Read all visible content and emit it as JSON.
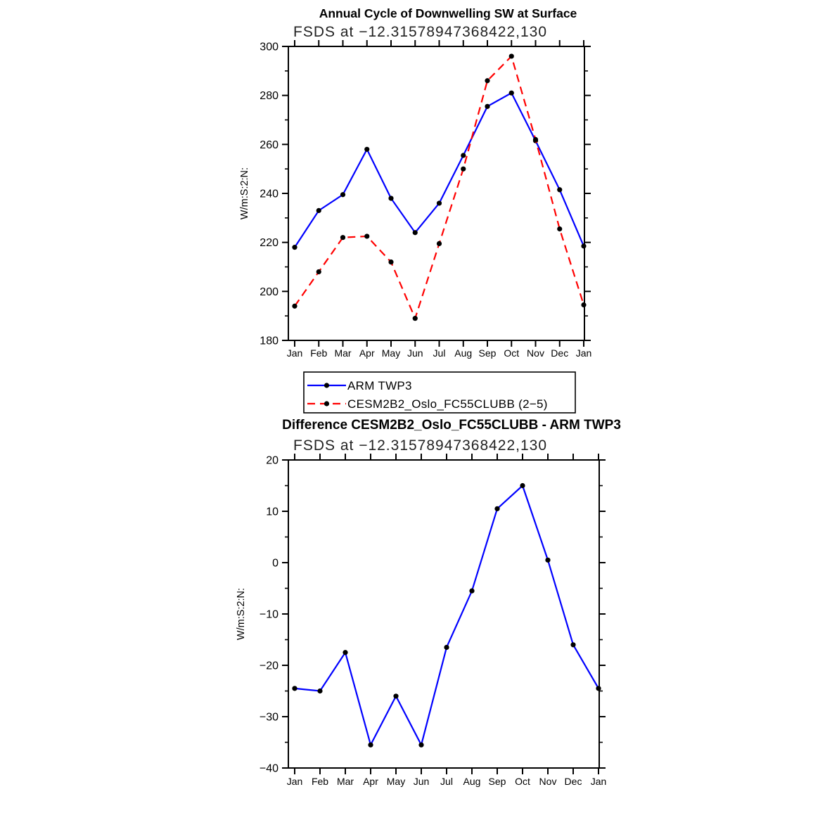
{
  "page": {
    "background": "#ffffff"
  },
  "colors": {
    "axis": "#000000",
    "marker": "#000000",
    "series_blue": "#0000ff",
    "series_red": "#ff0000"
  },
  "chart_data": [
    {
      "type": "line",
      "title": "Annual Cycle of Downwelling SW at Surface",
      "subtitle": "FSDS at −12.31578947368422,130",
      "ylabel": "W/m:S:2:N:",
      "categories": [
        "Jan",
        "Feb",
        "Mar",
        "Apr",
        "May",
        "Jun",
        "Jul",
        "Aug",
        "Sep",
        "Oct",
        "Nov",
        "Dec",
        "Jan"
      ],
      "ylim": [
        180,
        300
      ],
      "ytick_step": 20,
      "ytick_minor": 10,
      "grid": false,
      "legend_position": "below",
      "series": [
        {
          "name": "ARM TWP3",
          "color": "#0000ff",
          "style": "solid",
          "marker": "circle",
          "values": [
            218,
            233,
            239.5,
            258,
            238,
            224,
            236,
            255.5,
            275.5,
            281,
            261.5,
            241.5,
            218.5
          ]
        },
        {
          "name": "CESM2B2_Oslo_FC55CLUBB (2−5)",
          "color": "#ff0000",
          "style": "dashed",
          "marker": "circle",
          "values": [
            194,
            208,
            222,
            222.5,
            212,
            189,
            219.5,
            250,
            286,
            296,
            262,
            225.5,
            194.5
          ]
        }
      ]
    },
    {
      "type": "line",
      "title": "Difference CESM2B2_Oslo_FC55CLUBB - ARM TWP3",
      "subtitle": "FSDS at −12.31578947368422,130",
      "ylabel": "W/m:S:2:N:",
      "categories": [
        "Jan",
        "Feb",
        "Mar",
        "Apr",
        "May",
        "Jun",
        "Jul",
        "Aug",
        "Sep",
        "Oct",
        "Nov",
        "Dec",
        "Jan"
      ],
      "ylim": [
        -40,
        20
      ],
      "ytick_step": 10,
      "ytick_minor": 5,
      "grid": false,
      "series": [
        {
          "name": "CESM2B2_Oslo_FC55CLUBB − ARM TWP3",
          "color": "#0000ff",
          "style": "solid",
          "marker": "circle",
          "values": [
            -24.5,
            -25,
            -17.5,
            -35.5,
            -26,
            -35.5,
            -16.5,
            -5.5,
            10.5,
            15,
            0.5,
            -16,
            -24.5
          ]
        }
      ]
    }
  ],
  "legend": {
    "entries": [
      {
        "label": "ARM TWP3",
        "color": "#0000ff",
        "style": "solid"
      },
      {
        "label": "CESM2B2_Oslo_FC55CLUBB (2−5)",
        "color": "#ff0000",
        "style": "dashed"
      }
    ]
  }
}
